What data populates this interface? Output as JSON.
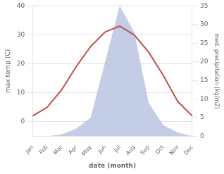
{
  "chart_data": {
    "type": "line",
    "categories": [
      "Jan",
      "Feb",
      "Mar",
      "Apr",
      "May",
      "Jun",
      "Jul",
      "Aug",
      "Sep",
      "Oct",
      "Nov",
      "Dec"
    ],
    "series": [
      {
        "type": "area",
        "axis": "y2",
        "color": "#b8c4e0",
        "values": [
          0,
          0,
          0.5,
          2,
          5,
          20,
          35,
          28,
          9,
          3,
          1,
          0
        ]
      },
      {
        "type": "line",
        "color": "#c0504d",
        "values": [
          2,
          5,
          11,
          19,
          26,
          31,
          33,
          30,
          24,
          16,
          7,
          2
        ]
      }
    ],
    "xlabel": "date (month)",
    "ylabel": "max temp (C)",
    "y2label": "med. precipitation (kg/m2)",
    "ylim": [
      -5,
      40
    ],
    "yticks": [
      0,
      10,
      20,
      30,
      40
    ],
    "y2lim": [
      0,
      35
    ],
    "y2ticks": [
      0,
      5,
      10,
      15,
      20,
      25,
      30,
      35
    ],
    "grid": true
  }
}
